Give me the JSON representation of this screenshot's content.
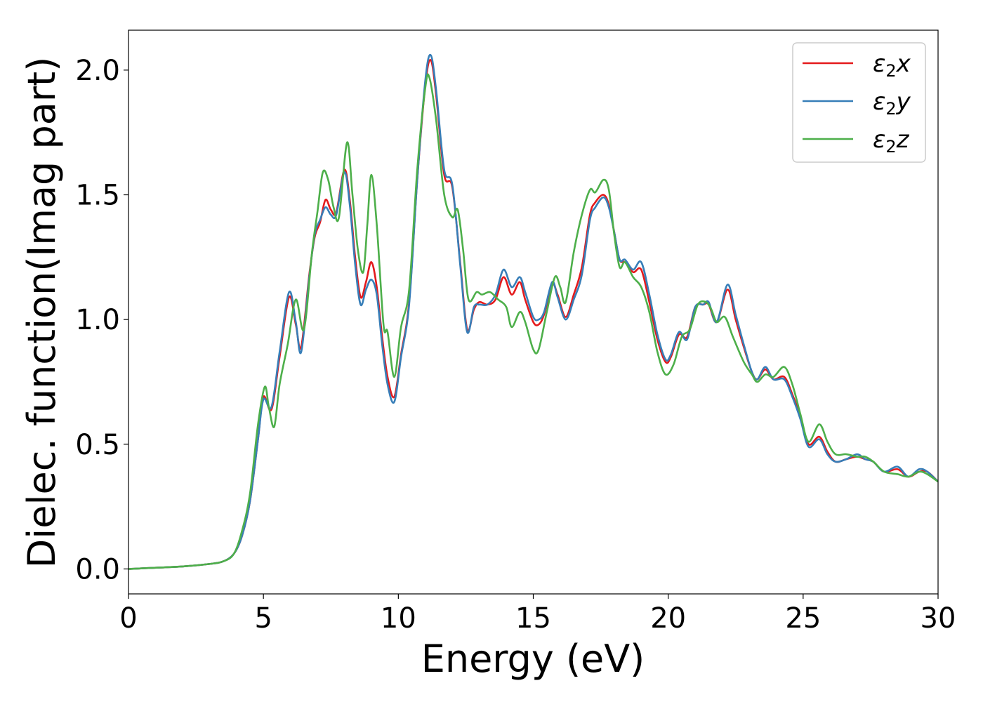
{
  "chart_data": {
    "type": "line",
    "xlabel": "Energy (eV)",
    "ylabel": "Dielec. function(Imag part)",
    "xlim": [
      0,
      30
    ],
    "ylim": [
      -0.1,
      2.16
    ],
    "xticks": [
      0,
      5,
      10,
      15,
      20,
      25,
      30
    ],
    "yticks": [
      0.0,
      0.5,
      1.0,
      1.5,
      2.0
    ],
    "xtick_labels": [
      "0",
      "5",
      "10",
      "15",
      "20",
      "25",
      "30"
    ],
    "ytick_labels": [
      "0.0",
      "0.5",
      "1.0",
      "1.5",
      "2.0"
    ],
    "grid": false,
    "legend_position": "top-right",
    "series": [
      {
        "name_base": "ε",
        "name_sub": "2",
        "name_suffix": "x",
        "color": "#e41a1c",
        "points": [
          [
            0,
            0
          ],
          [
            2,
            0.01
          ],
          [
            3,
            0.02
          ],
          [
            3.5,
            0.03
          ],
          [
            3.9,
            0.06
          ],
          [
            4.2,
            0.13
          ],
          [
            4.5,
            0.27
          ],
          [
            4.8,
            0.52
          ],
          [
            5.0,
            0.69
          ],
          [
            5.3,
            0.64
          ],
          [
            5.6,
            0.85
          ],
          [
            5.95,
            1.09
          ],
          [
            6.2,
            0.98
          ],
          [
            6.4,
            0.89
          ],
          [
            6.7,
            1.18
          ],
          [
            6.9,
            1.33
          ],
          [
            7.1,
            1.39
          ],
          [
            7.3,
            1.48
          ],
          [
            7.5,
            1.44
          ],
          [
            7.7,
            1.43
          ],
          [
            8.0,
            1.6
          ],
          [
            8.2,
            1.48
          ],
          [
            8.4,
            1.25
          ],
          [
            8.6,
            1.09
          ],
          [
            8.8,
            1.15
          ],
          [
            9.0,
            1.23
          ],
          [
            9.2,
            1.13
          ],
          [
            9.4,
            0.93
          ],
          [
            9.6,
            0.77
          ],
          [
            9.85,
            0.69
          ],
          [
            10.1,
            0.86
          ],
          [
            10.4,
            1.07
          ],
          [
            10.7,
            1.56
          ],
          [
            11.0,
            1.94
          ],
          [
            11.2,
            2.04
          ],
          [
            11.4,
            1.9
          ],
          [
            11.7,
            1.58
          ],
          [
            12.0,
            1.53
          ],
          [
            12.3,
            1.22
          ],
          [
            12.55,
            0.96
          ],
          [
            12.8,
            1.04
          ],
          [
            13.0,
            1.07
          ],
          [
            13.3,
            1.06
          ],
          [
            13.6,
            1.08
          ],
          [
            13.9,
            1.17
          ],
          [
            14.2,
            1.1
          ],
          [
            14.5,
            1.15
          ],
          [
            14.7,
            1.08
          ],
          [
            15.0,
            0.99
          ],
          [
            15.2,
            0.98
          ],
          [
            15.4,
            1.02
          ],
          [
            15.7,
            1.14
          ],
          [
            15.9,
            1.1
          ],
          [
            16.2,
            1.01
          ],
          [
            16.5,
            1.1
          ],
          [
            16.8,
            1.21
          ],
          [
            17.1,
            1.42
          ],
          [
            17.3,
            1.47
          ],
          [
            17.6,
            1.5
          ],
          [
            17.8,
            1.46
          ],
          [
            18.0,
            1.35
          ],
          [
            18.2,
            1.24
          ],
          [
            18.4,
            1.23
          ],
          [
            18.7,
            1.19
          ],
          [
            19.0,
            1.2
          ],
          [
            19.3,
            1.07
          ],
          [
            19.6,
            0.92
          ],
          [
            19.9,
            0.83
          ],
          [
            20.1,
            0.85
          ],
          [
            20.4,
            0.94
          ],
          [
            20.7,
            0.93
          ],
          [
            21.0,
            1.05
          ],
          [
            21.3,
            1.06
          ],
          [
            21.5,
            1.06
          ],
          [
            21.8,
            0.99
          ],
          [
            22.2,
            1.12
          ],
          [
            22.5,
            1.0
          ],
          [
            22.8,
            0.89
          ],
          [
            23.1,
            0.79
          ],
          [
            23.3,
            0.76
          ],
          [
            23.6,
            0.8
          ],
          [
            23.9,
            0.76
          ],
          [
            24.3,
            0.77
          ],
          [
            24.6,
            0.7
          ],
          [
            24.9,
            0.61
          ],
          [
            25.2,
            0.5
          ],
          [
            25.6,
            0.53
          ],
          [
            25.9,
            0.47
          ],
          [
            26.2,
            0.43
          ],
          [
            26.6,
            0.44
          ],
          [
            27.0,
            0.45
          ],
          [
            27.3,
            0.44
          ],
          [
            27.6,
            0.43
          ],
          [
            28.0,
            0.39
          ],
          [
            28.5,
            0.4
          ],
          [
            28.9,
            0.37
          ],
          [
            29.3,
            0.39
          ],
          [
            29.6,
            0.39
          ],
          [
            30.0,
            0.35
          ]
        ]
      },
      {
        "name_base": "ε",
        "name_sub": "2",
        "name_suffix": "y",
        "color": "#377eb8",
        "points": [
          [
            0,
            0
          ],
          [
            2,
            0.01
          ],
          [
            3,
            0.02
          ],
          [
            3.5,
            0.03
          ],
          [
            3.9,
            0.06
          ],
          [
            4.2,
            0.13
          ],
          [
            4.5,
            0.27
          ],
          [
            4.8,
            0.52
          ],
          [
            5.0,
            0.68
          ],
          [
            5.3,
            0.65
          ],
          [
            5.6,
            0.87
          ],
          [
            5.95,
            1.11
          ],
          [
            6.2,
            0.99
          ],
          [
            6.4,
            0.87
          ],
          [
            6.7,
            1.17
          ],
          [
            6.9,
            1.34
          ],
          [
            7.1,
            1.4
          ],
          [
            7.3,
            1.45
          ],
          [
            7.5,
            1.42
          ],
          [
            7.7,
            1.42
          ],
          [
            8.0,
            1.59
          ],
          [
            8.2,
            1.46
          ],
          [
            8.4,
            1.22
          ],
          [
            8.6,
            1.06
          ],
          [
            8.8,
            1.12
          ],
          [
            9.0,
            1.16
          ],
          [
            9.2,
            1.1
          ],
          [
            9.4,
            0.9
          ],
          [
            9.6,
            0.74
          ],
          [
            9.85,
            0.67
          ],
          [
            10.1,
            0.85
          ],
          [
            10.4,
            1.06
          ],
          [
            10.7,
            1.56
          ],
          [
            11.0,
            1.96
          ],
          [
            11.2,
            2.06
          ],
          [
            11.4,
            1.92
          ],
          [
            11.7,
            1.6
          ],
          [
            12.0,
            1.54
          ],
          [
            12.3,
            1.21
          ],
          [
            12.55,
            0.95
          ],
          [
            12.8,
            1.05
          ],
          [
            13.0,
            1.06
          ],
          [
            13.3,
            1.06
          ],
          [
            13.6,
            1.1
          ],
          [
            13.9,
            1.2
          ],
          [
            14.2,
            1.13
          ],
          [
            14.5,
            1.17
          ],
          [
            14.7,
            1.11
          ],
          [
            15.0,
            1.01
          ],
          [
            15.2,
            1.0
          ],
          [
            15.4,
            1.03
          ],
          [
            15.7,
            1.15
          ],
          [
            15.9,
            1.09
          ],
          [
            16.2,
            1.0
          ],
          [
            16.5,
            1.08
          ],
          [
            16.8,
            1.18
          ],
          [
            17.1,
            1.4
          ],
          [
            17.3,
            1.45
          ],
          [
            17.6,
            1.49
          ],
          [
            17.8,
            1.45
          ],
          [
            18.0,
            1.35
          ],
          [
            18.2,
            1.24
          ],
          [
            18.4,
            1.24
          ],
          [
            18.7,
            1.2
          ],
          [
            19.0,
            1.23
          ],
          [
            19.3,
            1.1
          ],
          [
            19.6,
            0.94
          ],
          [
            19.9,
            0.84
          ],
          [
            20.1,
            0.86
          ],
          [
            20.4,
            0.95
          ],
          [
            20.7,
            0.92
          ],
          [
            21.0,
            1.05
          ],
          [
            21.3,
            1.06
          ],
          [
            21.5,
            1.07
          ],
          [
            21.8,
            0.99
          ],
          [
            22.2,
            1.14
          ],
          [
            22.5,
            1.02
          ],
          [
            22.8,
            0.9
          ],
          [
            23.1,
            0.79
          ],
          [
            23.3,
            0.76
          ],
          [
            23.6,
            0.81
          ],
          [
            23.9,
            0.76
          ],
          [
            24.3,
            0.76
          ],
          [
            24.6,
            0.69
          ],
          [
            24.9,
            0.6
          ],
          [
            25.2,
            0.49
          ],
          [
            25.6,
            0.52
          ],
          [
            25.9,
            0.46
          ],
          [
            26.2,
            0.43
          ],
          [
            26.6,
            0.44
          ],
          [
            27.0,
            0.46
          ],
          [
            27.3,
            0.44
          ],
          [
            27.6,
            0.43
          ],
          [
            28.0,
            0.39
          ],
          [
            28.5,
            0.41
          ],
          [
            28.9,
            0.37
          ],
          [
            29.3,
            0.4
          ],
          [
            29.6,
            0.39
          ],
          [
            30.0,
            0.35
          ]
        ]
      },
      {
        "name_base": "ε",
        "name_sub": "2",
        "name_suffix": "z",
        "color": "#4daf4a",
        "points": [
          [
            0,
            0
          ],
          [
            2,
            0.01
          ],
          [
            3,
            0.02
          ],
          [
            3.5,
            0.03
          ],
          [
            3.9,
            0.06
          ],
          [
            4.2,
            0.15
          ],
          [
            4.5,
            0.3
          ],
          [
            4.8,
            0.58
          ],
          [
            5.05,
            0.73
          ],
          [
            5.2,
            0.65
          ],
          [
            5.4,
            0.57
          ],
          [
            5.6,
            0.74
          ],
          [
            5.9,
            0.9
          ],
          [
            6.2,
            1.08
          ],
          [
            6.5,
            0.96
          ],
          [
            6.8,
            1.27
          ],
          [
            7.0,
            1.43
          ],
          [
            7.2,
            1.59
          ],
          [
            7.4,
            1.56
          ],
          [
            7.6,
            1.45
          ],
          [
            7.8,
            1.41
          ],
          [
            8.1,
            1.71
          ],
          [
            8.3,
            1.5
          ],
          [
            8.5,
            1.28
          ],
          [
            8.7,
            1.19
          ],
          [
            8.85,
            1.38
          ],
          [
            9.0,
            1.58
          ],
          [
            9.2,
            1.38
          ],
          [
            9.45,
            0.98
          ],
          [
            9.6,
            0.95
          ],
          [
            9.85,
            0.77
          ],
          [
            10.1,
            0.97
          ],
          [
            10.4,
            1.12
          ],
          [
            10.7,
            1.6
          ],
          [
            11.0,
            1.93
          ],
          [
            11.15,
            1.97
          ],
          [
            11.4,
            1.8
          ],
          [
            11.7,
            1.5
          ],
          [
            12.0,
            1.41
          ],
          [
            12.2,
            1.44
          ],
          [
            12.4,
            1.28
          ],
          [
            12.6,
            1.08
          ],
          [
            12.9,
            1.11
          ],
          [
            13.1,
            1.1
          ],
          [
            13.4,
            1.11
          ],
          [
            13.7,
            1.08
          ],
          [
            14.0,
            1.05
          ],
          [
            14.2,
            0.97
          ],
          [
            14.5,
            1.03
          ],
          [
            14.7,
            0.99
          ],
          [
            15.0,
            0.88
          ],
          [
            15.2,
            0.88
          ],
          [
            15.5,
            1.03
          ],
          [
            15.8,
            1.17
          ],
          [
            16.0,
            1.13
          ],
          [
            16.2,
            1.07
          ],
          [
            16.5,
            1.27
          ],
          [
            16.8,
            1.42
          ],
          [
            17.1,
            1.52
          ],
          [
            17.3,
            1.51
          ],
          [
            17.6,
            1.56
          ],
          [
            17.8,
            1.52
          ],
          [
            18.0,
            1.34
          ],
          [
            18.2,
            1.21
          ],
          [
            18.4,
            1.23
          ],
          [
            18.7,
            1.17
          ],
          [
            19.0,
            1.13
          ],
          [
            19.3,
            1.03
          ],
          [
            19.6,
            0.87
          ],
          [
            19.9,
            0.78
          ],
          [
            20.2,
            0.82
          ],
          [
            20.5,
            0.93
          ],
          [
            20.8,
            0.96
          ],
          [
            21.1,
            1.06
          ],
          [
            21.4,
            1.07
          ],
          [
            21.6,
            1.04
          ],
          [
            21.8,
            0.99
          ],
          [
            22.1,
            1.01
          ],
          [
            22.4,
            0.93
          ],
          [
            22.8,
            0.83
          ],
          [
            23.1,
            0.78
          ],
          [
            23.3,
            0.75
          ],
          [
            23.6,
            0.78
          ],
          [
            23.9,
            0.77
          ],
          [
            24.3,
            0.81
          ],
          [
            24.6,
            0.74
          ],
          [
            24.9,
            0.62
          ],
          [
            25.2,
            0.51
          ],
          [
            25.6,
            0.58
          ],
          [
            25.9,
            0.51
          ],
          [
            26.2,
            0.46
          ],
          [
            26.6,
            0.46
          ],
          [
            27.0,
            0.45
          ],
          [
            27.3,
            0.45
          ],
          [
            27.6,
            0.43
          ],
          [
            28.0,
            0.39
          ],
          [
            28.5,
            0.38
          ],
          [
            28.9,
            0.37
          ],
          [
            29.3,
            0.39
          ],
          [
            29.6,
            0.38
          ],
          [
            30.0,
            0.35
          ]
        ]
      }
    ]
  }
}
